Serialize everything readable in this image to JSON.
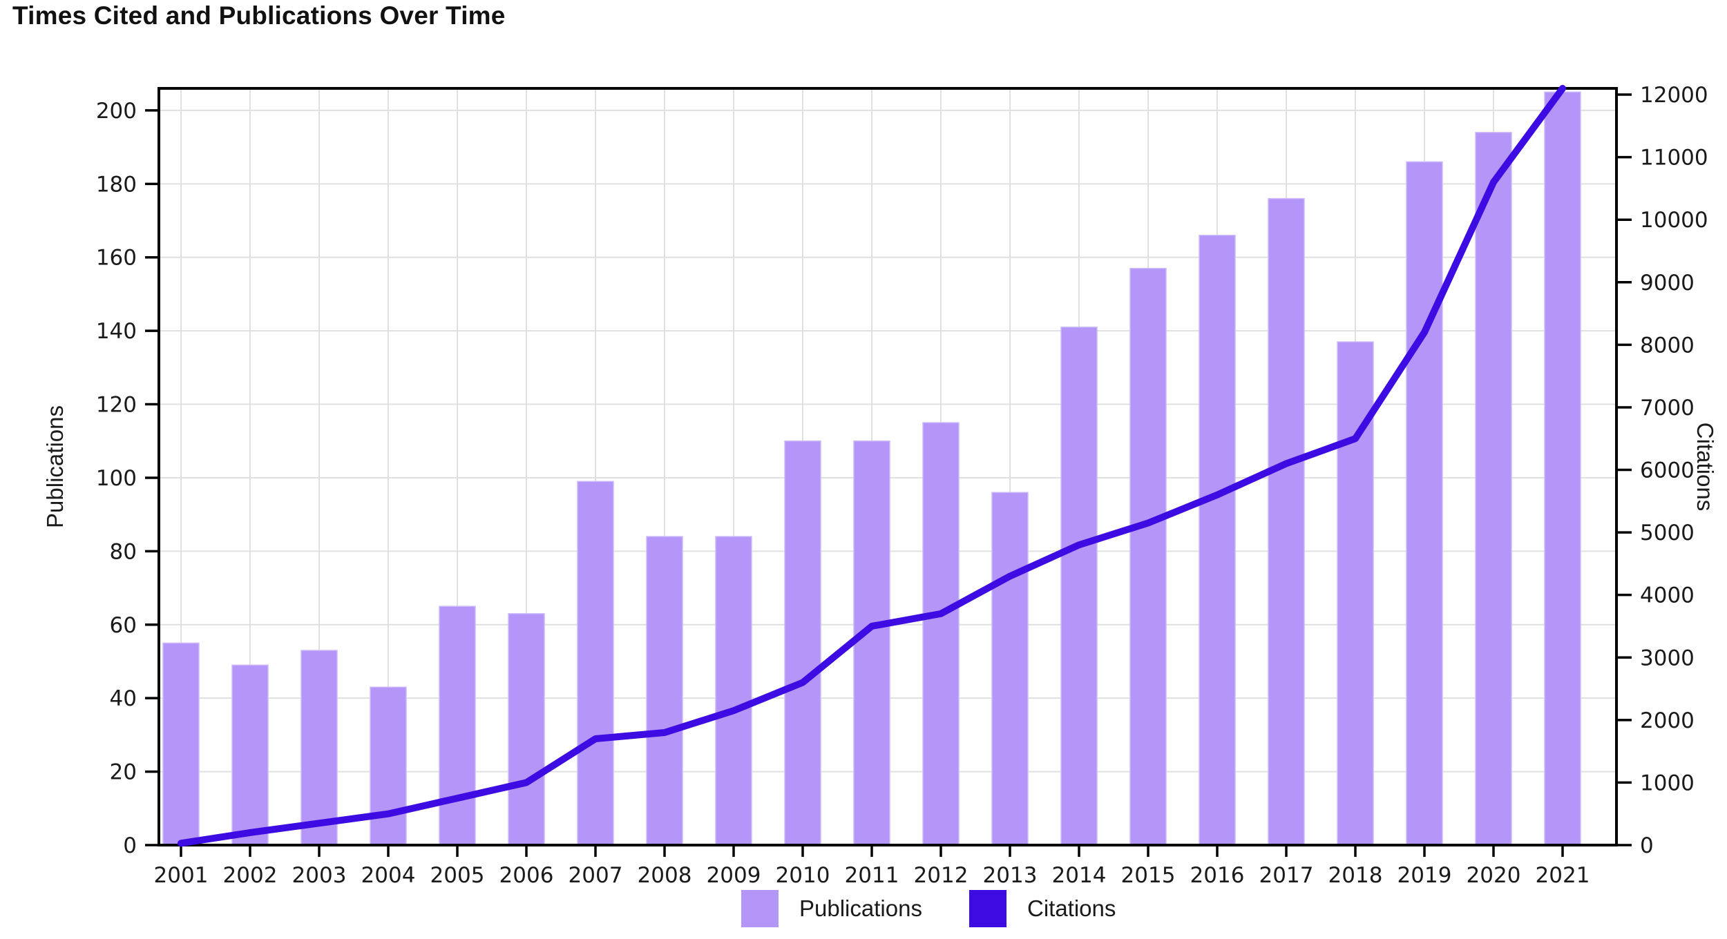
{
  "title": "Times Cited and Publications Over Time",
  "legend": {
    "items": [
      {
        "label": "Publications",
        "color": "#b496f8"
      },
      {
        "label": "Citations",
        "color": "#3d0ce2"
      }
    ]
  },
  "chart_data": {
    "type": "bar",
    "title": "Times Cited and Publications Over Time",
    "categories": [
      "2001",
      "2002",
      "2003",
      "2004",
      "2005",
      "2006",
      "2007",
      "2008",
      "2009",
      "2010",
      "2011",
      "2012",
      "2013",
      "2014",
      "2015",
      "2016",
      "2017",
      "2018",
      "2019",
      "2020",
      "2021"
    ],
    "series": [
      {
        "name": "Publications",
        "type": "bar",
        "axis": "left",
        "color": "#b496f8",
        "values": [
          55,
          49,
          53,
          43,
          65,
          63,
          99,
          84,
          84,
          110,
          110,
          115,
          96,
          141,
          157,
          166,
          176,
          137,
          186,
          194,
          205
        ]
      },
      {
        "name": "Citations",
        "type": "line",
        "axis": "right",
        "color": "#3d0ce2",
        "values": [
          30,
          200,
          350,
          500,
          750,
          1000,
          1700,
          1800,
          2150,
          2600,
          3500,
          3700,
          4300,
          4800,
          5150,
          5600,
          6100,
          6500,
          8200,
          10600,
          12100
        ]
      }
    ],
    "left_axis": {
      "label": "Publications",
      "min": 0,
      "max": 200,
      "display_max": 206,
      "tick_step": 20,
      "ticks": [
        0,
        20,
        40,
        60,
        80,
        100,
        120,
        140,
        160,
        180,
        200
      ]
    },
    "right_axis": {
      "label": "Citations",
      "min": 0,
      "max": 12000,
      "display_max": 12100,
      "tick_step": 1000,
      "ticks": [
        0,
        1000,
        2000,
        3000,
        4000,
        5000,
        6000,
        7000,
        8000,
        9000,
        10000,
        11000,
        12000
      ]
    },
    "xlabel": "",
    "grid": true,
    "legend_position": "bottom",
    "colors": {
      "grid": "#e0e0e0",
      "axis": "#000000",
      "text": "#1a1a1a",
      "bar_edge": "#cbb8fa"
    }
  }
}
